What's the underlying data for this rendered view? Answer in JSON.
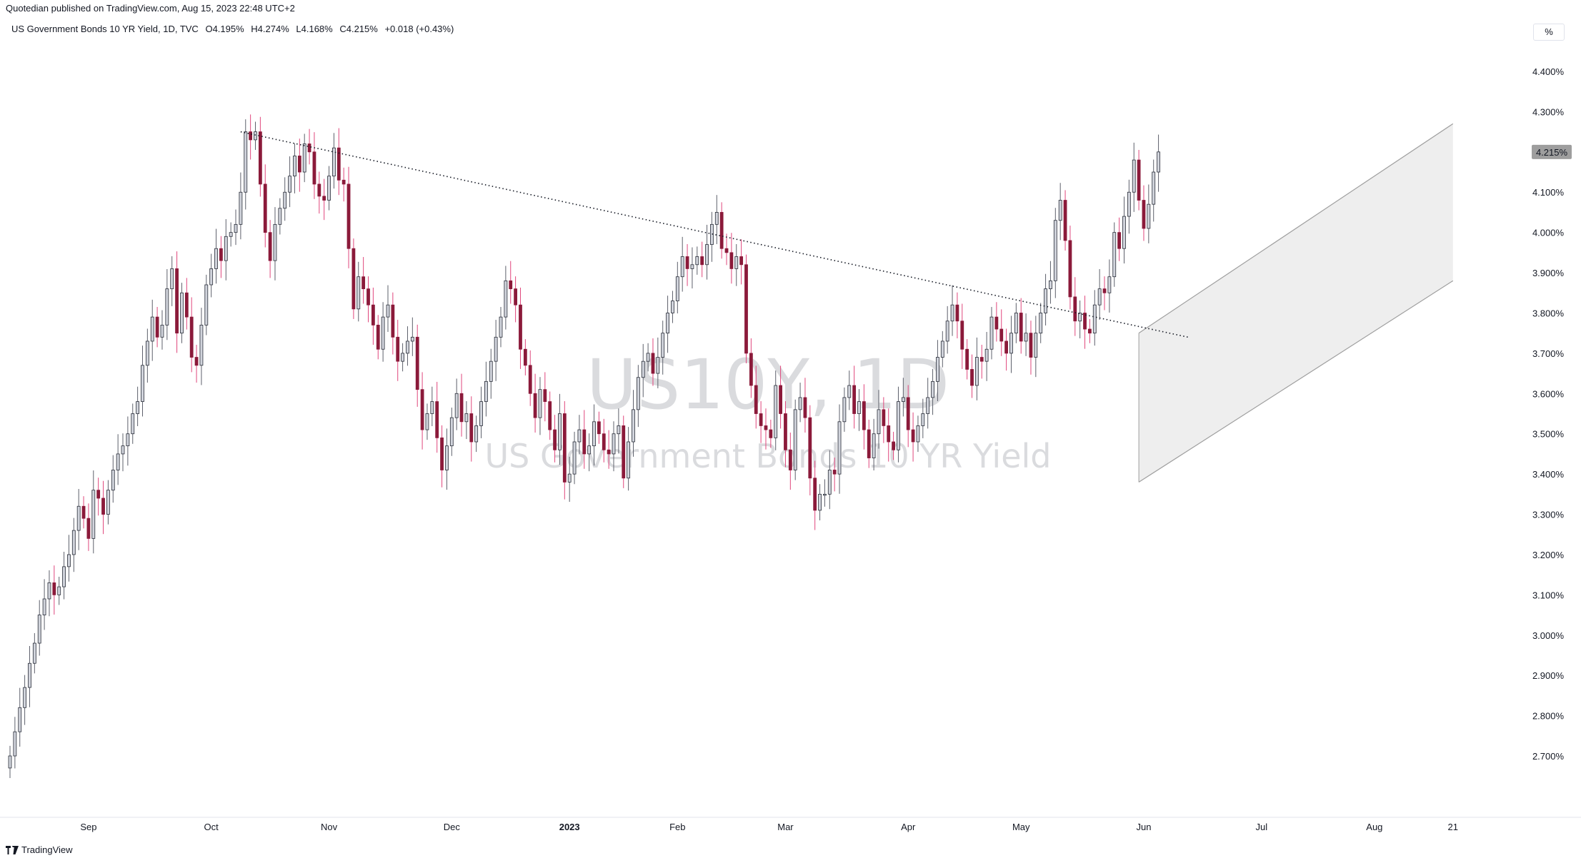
{
  "publisher": "Quotedian published on TradingView.com, Aug 15, 2023 22:48 UTC+2",
  "symbol": {
    "name": "US Government Bonds 10 YR Yield, 1D, TVC",
    "open": "O4.195%",
    "high": "H4.274%",
    "low": "L4.168%",
    "close": "C4.215%",
    "change": "+0.018 (+0.43%)"
  },
  "unit_label": "%",
  "last_price_label": "4.215%",
  "watermark": {
    "ticker": "US10Y, 1D",
    "description": "US Government Bonds 10 YR Yield"
  },
  "footer": {
    "brand": "TradingView"
  },
  "colors": {
    "up_fill": "#d1d4dc",
    "down_fill": "#8b1a3a",
    "up_wick": "#5d606b",
    "down_wick": "#e0467c",
    "channel": "#ebebeb"
  },
  "chart_data": {
    "type": "candlestick",
    "ylim": [
      2.65,
      4.45
    ],
    "y_ticks": [
      "4.400%",
      "4.300%",
      "4.200%",
      "4.100%",
      "4.000%",
      "3.900%",
      "3.800%",
      "3.700%",
      "3.600%",
      "3.500%",
      "3.400%",
      "3.300%",
      "3.200%",
      "3.100%",
      "3.000%",
      "2.900%",
      "2.800%",
      "2.700%"
    ],
    "y_tick_values": [
      4.4,
      4.3,
      4.2,
      4.1,
      4.0,
      3.9,
      3.8,
      3.7,
      3.6,
      3.5,
      3.4,
      3.3,
      3.2,
      3.1,
      3.0,
      2.9,
      2.8,
      2.7
    ],
    "x_labels": [
      "Sep",
      "Oct",
      "Nov",
      "Dec",
      "2023",
      "Feb",
      "Mar",
      "Apr",
      "May",
      "Jun",
      "Jul",
      "Aug",
      "21"
    ],
    "x_label_bar_index": [
      16,
      41,
      65,
      90,
      114,
      136,
      158,
      183,
      206,
      231,
      255,
      278,
      294
    ],
    "close_series": [
      2.7,
      2.76,
      2.82,
      2.87,
      2.93,
      2.98,
      3.05,
      3.09,
      3.13,
      3.1,
      3.12,
      3.17,
      3.2,
      3.26,
      3.32,
      3.29,
      3.24,
      3.36,
      3.34,
      3.3,
      3.36,
      3.41,
      3.45,
      3.47,
      3.5,
      3.55,
      3.58,
      3.67,
      3.73,
      3.79,
      3.74,
      3.77,
      3.86,
      3.91,
      3.75,
      3.85,
      3.79,
      3.69,
      3.67,
      3.77,
      3.87,
      3.91,
      3.96,
      3.93,
      3.99,
      4.0,
      4.02,
      4.1,
      4.25,
      4.23,
      4.25,
      4.12,
      4.0,
      3.93,
      4.02,
      4.06,
      4.1,
      4.14,
      4.19,
      4.15,
      4.22,
      4.2,
      4.12,
      4.09,
      4.08,
      4.14,
      4.21,
      4.13,
      4.12,
      3.96,
      3.81,
      3.89,
      3.86,
      3.82,
      3.77,
      3.71,
      3.79,
      3.82,
      3.74,
      3.68,
      3.7,
      3.73,
      3.74,
      3.61,
      3.51,
      3.55,
      3.58,
      3.49,
      3.41,
      3.47,
      3.54,
      3.6,
      3.53,
      3.55,
      3.48,
      3.52,
      3.58,
      3.63,
      3.68,
      3.74,
      3.79,
      3.88,
      3.86,
      3.82,
      3.71,
      3.67,
      3.6,
      3.54,
      3.61,
      3.58,
      3.51,
      3.46,
      3.55,
      3.38,
      3.4,
      3.48,
      3.51,
      3.45,
      3.47,
      3.53,
      3.5,
      3.46,
      3.45,
      3.5,
      3.52,
      3.39,
      3.48,
      3.56,
      3.64,
      3.68,
      3.7,
      3.65,
      3.69,
      3.75,
      3.8,
      3.83,
      3.89,
      3.94,
      3.91,
      3.92,
      3.94,
      3.92,
      3.97,
      4.02,
      4.05,
      3.96,
      3.95,
      3.91,
      3.94,
      3.92,
      3.7,
      3.62,
      3.55,
      3.52,
      3.51,
      3.49,
      3.62,
      3.55,
      3.46,
      3.41,
      3.56,
      3.59,
      3.54,
      3.39,
      3.31,
      3.35,
      3.35,
      3.41,
      3.4,
      3.53,
      3.59,
      3.62,
      3.55,
      3.58,
      3.51,
      3.44,
      3.5,
      3.56,
      3.52,
      3.48,
      3.46,
      3.58,
      3.59,
      3.51,
      3.48,
      3.52,
      3.55,
      3.59,
      3.63,
      3.69,
      3.73,
      3.78,
      3.82,
      3.78,
      3.71,
      3.66,
      3.62,
      3.69,
      3.68,
      3.71,
      3.79,
      3.76,
      3.73,
      3.7,
      3.75,
      3.8,
      3.73,
      3.75,
      3.69,
      3.75,
      3.8,
      3.86,
      3.88,
      4.03,
      4.08,
      3.98,
      3.84,
      3.78,
      3.8,
      3.76,
      3.75,
      3.82,
      3.86,
      3.85,
      3.89,
      4.0,
      3.96,
      4.04,
      4.1,
      4.18,
      4.08,
      4.01,
      4.07,
      4.15,
      4.2
    ],
    "channel": {
      "upper_start": 3.75,
      "upper_end": 4.27,
      "lower_start": 3.38,
      "lower_end": 3.88
    },
    "trendline": {
      "start": 4.25,
      "end": 3.74
    }
  }
}
